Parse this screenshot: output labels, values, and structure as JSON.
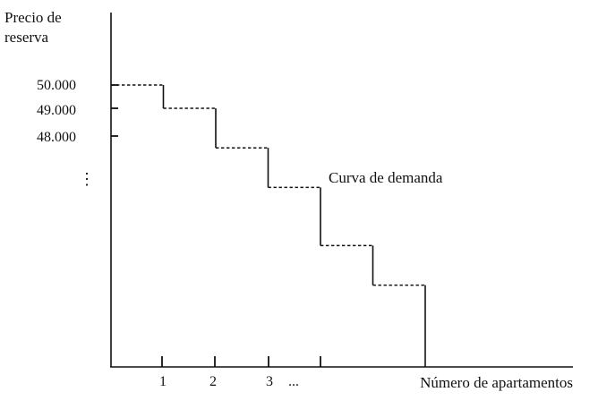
{
  "chart_data": {
    "type": "line",
    "title": "",
    "ylabel_line1": "Precio de",
    "ylabel_line2": "reserva",
    "xlabel": "Número de apartamentos",
    "grid": false,
    "y_ticks": [
      {
        "label": "50.000",
        "value": 50000
      },
      {
        "label": "49.000",
        "value": 49000
      },
      {
        "label": "48.000",
        "value": 48000
      }
    ],
    "y_continuation": "⋮",
    "x_ticks": [
      {
        "label": "1",
        "value": 1
      },
      {
        "label": "2",
        "value": 2
      },
      {
        "label": "3",
        "value": 3
      },
      {
        "label": "",
        "value": 4
      }
    ],
    "x_continuation": "...",
    "annotation": "Curva de demanda",
    "series": [
      {
        "name": "Curva de demanda",
        "style": "step",
        "steps": [
          {
            "x_start": 0,
            "x_end": 1,
            "y": 50000
          },
          {
            "x_start": 1,
            "x_end": 2,
            "y": 49000
          },
          {
            "x_start": 2,
            "x_end": 3,
            "y": 47300
          },
          {
            "x_start": 3,
            "x_end": 4,
            "y": 45600
          },
          {
            "x_start": 4,
            "x_end": 5,
            "y": 43100
          },
          {
            "x_start": 5,
            "x_end": 6,
            "y": 41400
          }
        ],
        "x_end": 6
      }
    ],
    "xlim": [
      0,
      8.4
    ],
    "ylim": [
      34000,
      50000
    ]
  }
}
